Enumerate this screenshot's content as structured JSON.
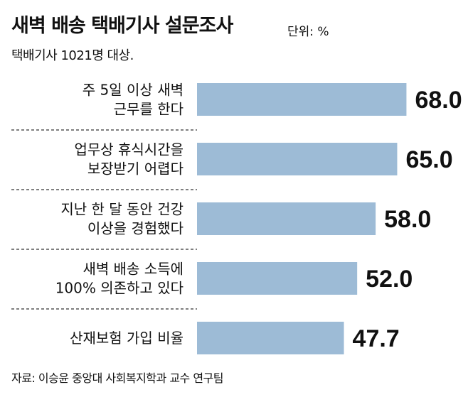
{
  "header": {
    "title": "새벽 배송 택배기사 설문조사",
    "unit": "단위: %",
    "subtitle": "택배기사 1021명 대상."
  },
  "chart_data": {
    "type": "bar",
    "orientation": "horizontal",
    "title": "새벽 배송 택배기사 설문조사",
    "categories": [
      [
        "주 5일 이상 새벽",
        "근무를 한다"
      ],
      [
        "업무상 휴식시간을",
        "보장받기 어렵다"
      ],
      [
        "지난 한 달 동안 건강",
        "이상을 경험했다"
      ],
      [
        "새벽 배송 소득에",
        "100% 의존하고 있다"
      ],
      [
        "산재보험 가입 비율"
      ]
    ],
    "values": [
      68.0,
      65.0,
      58.0,
      52.0,
      47.7
    ],
    "value_labels": [
      "68.0",
      "65.0",
      "58.0",
      "52.0",
      "47.7"
    ],
    "xlim": [
      0,
      100
    ],
    "bar_color": "#9dbbd6",
    "grid": false,
    "legend": "none"
  },
  "footer": {
    "source": "자료: 이승윤 중앙대 사회복지학과 교수 연구팀"
  }
}
